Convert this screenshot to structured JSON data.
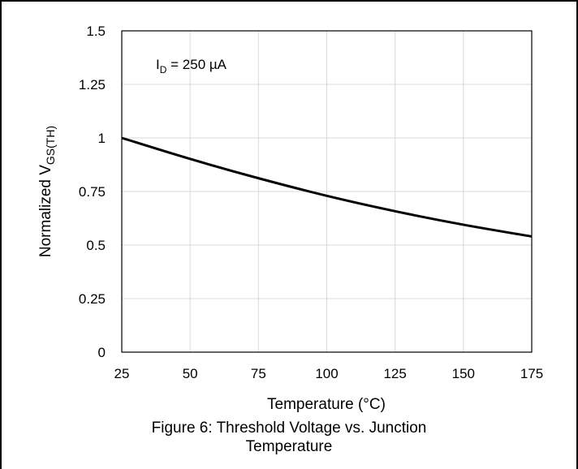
{
  "chart_data": {
    "type": "line",
    "ylabel_main": "Normalized V",
    "ylabel_sub": "GS(TH)",
    "xlabel": "Temperature (°C)",
    "annotation": {
      "prefix": "I",
      "sub": "D",
      "rest": " = 250 µA"
    },
    "xlim": [
      25,
      175
    ],
    "ylim": [
      0,
      1.5
    ],
    "xticks": [
      25,
      50,
      75,
      100,
      125,
      150,
      175
    ],
    "yticks": [
      0,
      0.25,
      0.5,
      0.75,
      1,
      1.25,
      1.5
    ],
    "ytick_labels": [
      "0",
      "0.25",
      "0.5",
      "0.75",
      "1",
      "1.25",
      "1.5"
    ],
    "grid": true,
    "series": [
      {
        "x": [
          25,
          50,
          75,
          100,
          125,
          150,
          175
        ],
        "y": [
          1.0,
          0.902,
          0.812,
          0.73,
          0.658,
          0.595,
          0.54
        ]
      }
    ]
  },
  "caption": {
    "line1": "Figure 6: Threshold Voltage vs. Junction",
    "line2": "Temperature"
  }
}
